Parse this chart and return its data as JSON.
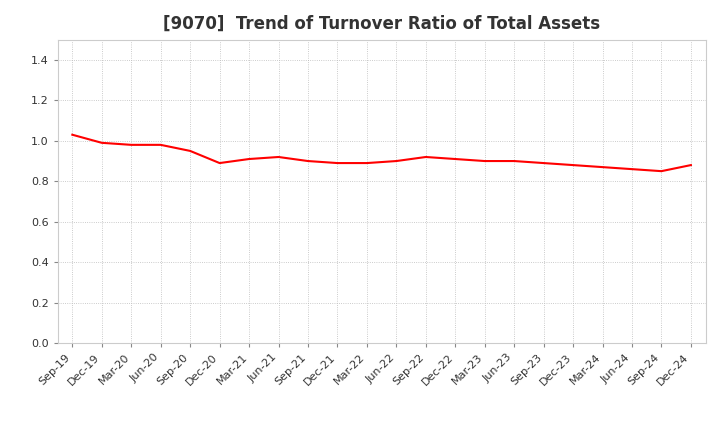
{
  "title": "[9070]  Trend of Turnover Ratio of Total Assets",
  "x_labels": [
    "Sep-19",
    "Dec-19",
    "Mar-20",
    "Jun-20",
    "Sep-20",
    "Dec-20",
    "Mar-21",
    "Jun-21",
    "Sep-21",
    "Dec-21",
    "Mar-22",
    "Jun-22",
    "Sep-22",
    "Dec-22",
    "Mar-23",
    "Jun-23",
    "Sep-23",
    "Dec-23",
    "Mar-24",
    "Jun-24",
    "Sep-24",
    "Dec-24"
  ],
  "y_values": [
    1.03,
    0.99,
    0.98,
    0.98,
    0.95,
    0.89,
    0.91,
    0.92,
    0.9,
    0.89,
    0.89,
    0.9,
    0.92,
    0.91,
    0.9,
    0.9,
    0.89,
    0.88,
    0.87,
    0.86,
    0.85,
    0.88
  ],
  "line_color": "#ff0000",
  "line_width": 1.5,
  "ylim": [
    0.0,
    1.5
  ],
  "yticks": [
    0.0,
    0.2,
    0.4,
    0.6,
    0.8,
    1.0,
    1.2,
    1.4
  ],
  "background_color": "#ffffff",
  "grid_color": "#bbbbbb",
  "title_fontsize": 12,
  "tick_fontsize": 8
}
